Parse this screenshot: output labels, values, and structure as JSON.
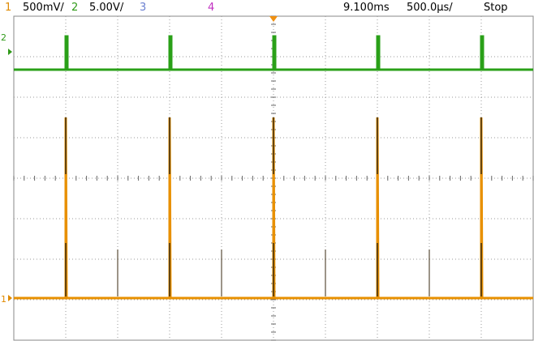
{
  "status_bar": {
    "ch1_label": "1",
    "ch1_scale": "500mV/",
    "ch2_label": "2",
    "ch2_scale": "5.00V/",
    "ch3_label": "3",
    "ch4_label": "4",
    "time_position": "9.100ms",
    "time_scale": "500.0µs/",
    "run_state": "Stop"
  },
  "markers": {
    "ch2": "2",
    "ch1": "1"
  }
}
